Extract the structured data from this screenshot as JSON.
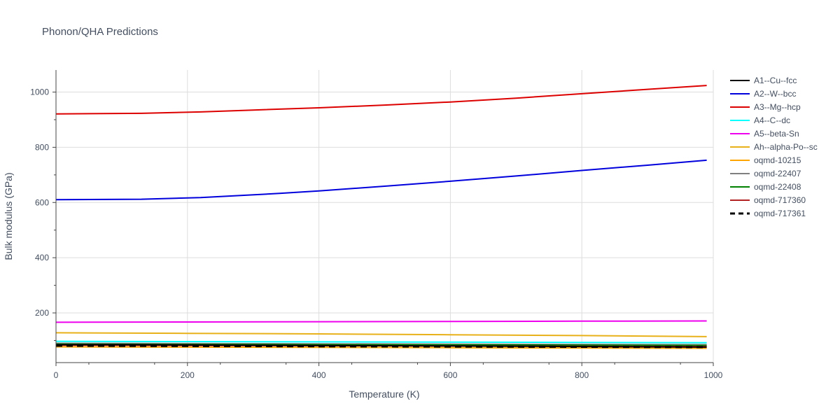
{
  "chart_data": {
    "type": "line",
    "title": "Phonon/QHA Predictions",
    "xlabel": "Temperature (K)",
    "ylabel": "Bulk modulus (GPa)",
    "xlim": [
      0,
      1000
    ],
    "ylim": [
      20,
      1080
    ],
    "xticks": [
      0,
      200,
      400,
      600,
      800,
      1000
    ],
    "yticks": [
      200,
      400,
      600,
      800,
      1000
    ],
    "grid": true,
    "legend_position": "right",
    "series": [
      {
        "name": "A1--Cu--fcc",
        "color": "#000000",
        "dash": false,
        "x": [
          0,
          100,
          200,
          300,
          400,
          500,
          600,
          700,
          800,
          900,
          990
        ],
        "y": [
          85,
          85,
          84,
          83,
          82,
          81,
          80,
          79,
          78,
          77,
          76
        ]
      },
      {
        "name": "A2--W--bcc",
        "color": "#0000dd",
        "dash": false,
        "x": [
          0,
          130,
          220,
          340,
          400,
          500,
          600,
          700,
          800,
          900,
          990
        ],
        "y": [
          610,
          612,
          618,
          633,
          642,
          659,
          677,
          696,
          716,
          735,
          753
        ]
      },
      {
        "name": "A3--Mg--hcp",
        "color": "#dd0000",
        "dash": false,
        "x": [
          0,
          130,
          220,
          300,
          400,
          500,
          600,
          700,
          800,
          900,
          990
        ],
        "y": [
          921,
          923,
          928,
          935,
          943,
          953,
          964,
          978,
          994,
          1010,
          1024
        ]
      },
      {
        "name": "A4--C--dc",
        "color": "#00ffff",
        "dash": false,
        "x": [
          0,
          200,
          400,
          600,
          800,
          990
        ],
        "y": [
          97,
          96,
          95,
          94,
          93,
          92
        ]
      },
      {
        "name": "A5--beta-Sn",
        "color": "#ee00ee",
        "dash": false,
        "x": [
          0,
          200,
          400,
          600,
          800,
          990
        ],
        "y": [
          166,
          167,
          168,
          169,
          170,
          171
        ]
      },
      {
        "name": "Ah--alpha-Po--sc",
        "color": "#e8b11a",
        "dash": false,
        "x": [
          0,
          200,
          400,
          600,
          800,
          990
        ],
        "y": [
          128,
          126,
          124,
          121,
          118,
          114
        ]
      },
      {
        "name": "oqmd-10215",
        "color": "#ffa500",
        "dash": false,
        "x": [
          0,
          200,
          400,
          600,
          800,
          990
        ],
        "y": [
          77,
          76,
          75,
          74,
          73,
          72
        ]
      },
      {
        "name": "oqmd-22407",
        "color": "#808080",
        "dash": false,
        "x": [
          0,
          200,
          400,
          600,
          800,
          990
        ],
        "y": [
          90,
          89,
          88,
          87,
          86,
          85
        ]
      },
      {
        "name": "oqmd-22408",
        "color": "#008000",
        "dash": false,
        "x": [
          0,
          200,
          400,
          600,
          800,
          990
        ],
        "y": [
          87,
          86,
          85,
          84,
          83,
          82
        ]
      },
      {
        "name": "oqmd-717360",
        "color": "#b22222",
        "dash": false,
        "x": [
          0,
          200,
          400,
          600,
          800,
          990
        ],
        "y": [
          83,
          82,
          81,
          80,
          79,
          78
        ]
      },
      {
        "name": "oqmd-717361",
        "color": "#000000",
        "dash": true,
        "x": [
          0,
          200,
          400,
          600,
          800,
          990
        ],
        "y": [
          81,
          80,
          79,
          78,
          77,
          76
        ]
      }
    ]
  }
}
